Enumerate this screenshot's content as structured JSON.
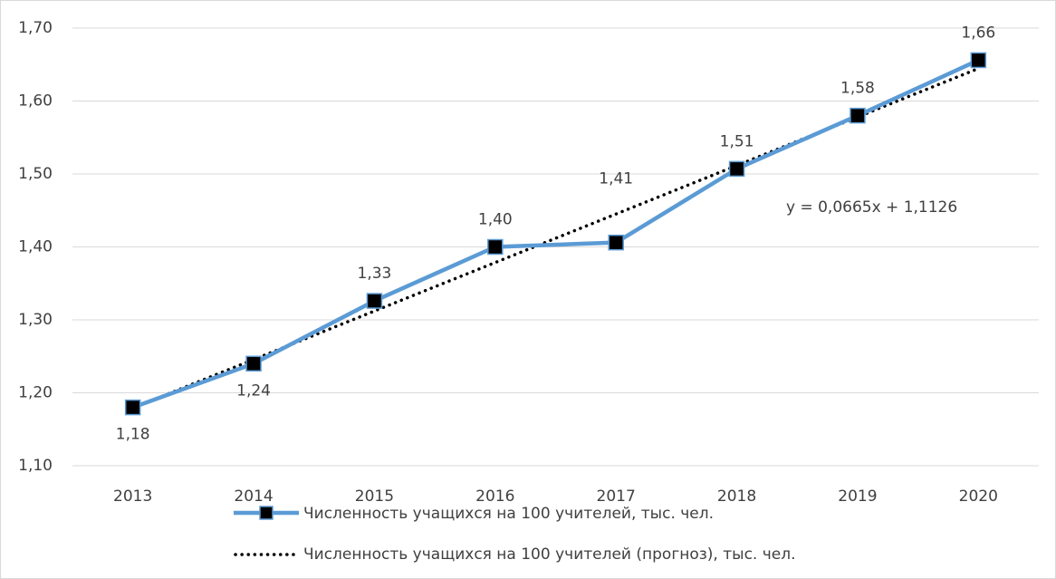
{
  "chart_data": {
    "type": "line",
    "categories": [
      "2013",
      "2014",
      "2015",
      "2016",
      "2017",
      "2018",
      "2019",
      "2020"
    ],
    "series": [
      {
        "name": "Численность учащихся на 100 учителей, тыс. чел.",
        "color": "#5b9bd5",
        "values": [
          1.18,
          1.24,
          1.326,
          1.4,
          1.406,
          1.507,
          1.58,
          1.656
        ],
        "value_labels": [
          "1,18",
          "1,24",
          "1,33",
          "1,40",
          "1,41",
          "1,51",
          "1,58",
          "1,66"
        ]
      },
      {
        "name": "Численность учащихся на 100 учителей (прогноз), тыс. чел.",
        "color": "#000000",
        "values": [
          1.1791,
          1.2456,
          1.3121,
          1.3786,
          1.4451,
          1.5116,
          1.5781,
          1.6446
        ]
      }
    ],
    "annotation": "y = 0,0665x + 1,1126",
    "ylim": [
      1.1,
      1.7
    ],
    "yticks": [
      {
        "value": 1.1,
        "label": "1,10"
      },
      {
        "value": 1.2,
        "label": "1,20"
      },
      {
        "value": 1.3,
        "label": "1,30"
      },
      {
        "value": 1.4,
        "label": "1,40"
      },
      {
        "value": 1.5,
        "label": "1,50"
      },
      {
        "value": 1.6,
        "label": "1,60"
      },
      {
        "value": 1.7,
        "label": "1,70"
      }
    ],
    "grid": true
  }
}
